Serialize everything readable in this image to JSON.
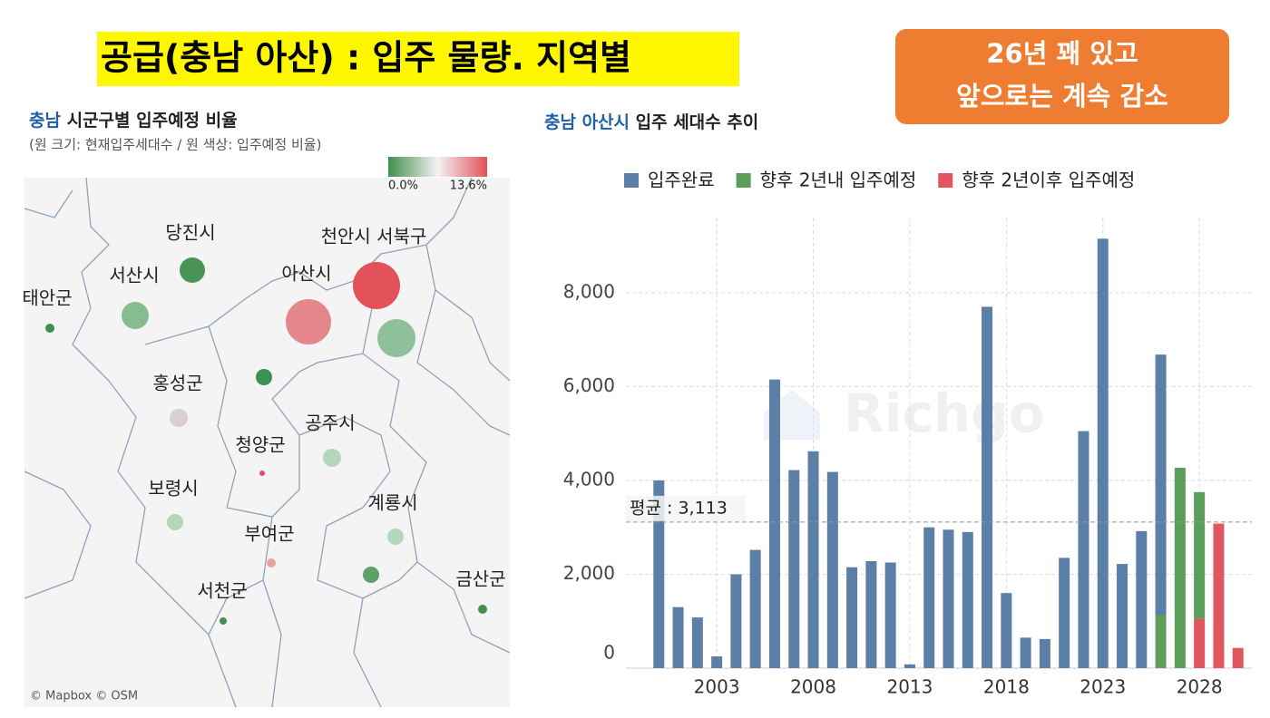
{
  "header": {
    "title": "공급(충남 아산) : 입주 물량. 지역별"
  },
  "callout": {
    "lines": [
      "26년 꽤 있고",
      "앞으로는 계속 감소"
    ]
  },
  "map": {
    "title_highlight": "충남",
    "title_rest": " 시군구별 입주예정 비율",
    "subtitle": "(원 크기: 현재입주세대수 / 원 색상: 입주예정 비율)",
    "legend_min": "0.0%",
    "legend_max": "13.6%",
    "labels": [
      "당진시",
      "서산시",
      "태안군",
      "아산시",
      "천안시 서북구",
      "홍성군",
      "청양군",
      "공주시",
      "보령시",
      "부여군",
      "계룡시",
      "서천군",
      "금산군"
    ],
    "credits": "© Mapbox  © OSM"
  },
  "chart_data": {
    "type": "bar",
    "stacked": true,
    "title_highlight": "충남 아산시",
    "title_rest": " 입주 세대수 추이",
    "watermark": "Richgo",
    "x": [
      2000,
      2001,
      2002,
      2003,
      2004,
      2005,
      2006,
      2007,
      2008,
      2009,
      2010,
      2011,
      2012,
      2013,
      2014,
      2015,
      2016,
      2017,
      2018,
      2019,
      2020,
      2021,
      2022,
      2023,
      2024,
      2025,
      2026,
      2027,
      2028,
      2029,
      2030
    ],
    "xlim": [
      1999,
      2031
    ],
    "xticks": [
      2003,
      2008,
      2013,
      2018,
      2023,
      2028
    ],
    "ylim": [
      0,
      9600
    ],
    "yticks": [
      0,
      {
        "value": 2000,
        "label": "2,000"
      },
      {
        "value": 4000,
        "label": "4,000"
      },
      {
        "value": 6000,
        "label": "6,000"
      },
      {
        "value": 8000,
        "label": "8,000"
      }
    ],
    "grid": true,
    "legend": "top",
    "series": [
      {
        "name": "입주완료",
        "color": "#5b7fa6",
        "values": [
          4000,
          1300,
          1080,
          250,
          2000,
          2520,
          6150,
          4220,
          4620,
          4180,
          2150,
          2280,
          2250,
          80,
          3000,
          2950,
          2900,
          7700,
          1600,
          650,
          620,
          2350,
          5050,
          9150,
          2220,
          2920,
          5550,
          null,
          null,
          null,
          null
        ]
      },
      {
        "name": "향후 2년내 입주예정",
        "color": "#5a9e5a",
        "values": [
          null,
          null,
          null,
          null,
          null,
          null,
          null,
          null,
          null,
          null,
          null,
          null,
          null,
          null,
          null,
          null,
          null,
          null,
          null,
          null,
          null,
          null,
          null,
          null,
          null,
          null,
          1130,
          4270,
          2700,
          null,
          null
        ]
      },
      {
        "name": "향후 2년이후 입주예정",
        "color": "#e0575f",
        "values": [
          null,
          null,
          null,
          null,
          null,
          null,
          null,
          null,
          null,
          null,
          null,
          null,
          null,
          null,
          null,
          null,
          null,
          null,
          null,
          null,
          null,
          null,
          null,
          null,
          null,
          null,
          null,
          null,
          1050,
          3080,
          430
        ]
      }
    ],
    "annotations": [
      {
        "value": 3113,
        "label": "평균 : 3,113"
      }
    ]
  }
}
